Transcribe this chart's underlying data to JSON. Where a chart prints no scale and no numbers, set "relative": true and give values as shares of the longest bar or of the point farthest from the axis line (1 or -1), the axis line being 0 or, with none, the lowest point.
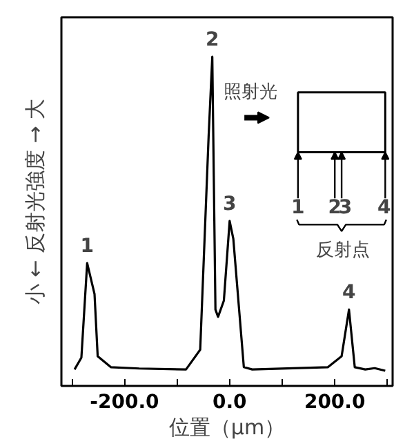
{
  "chart_data": {
    "type": "line",
    "relative": true,
    "xlabel": "位置（μm）",
    "ylabel": "小 ← 反射光強度 → 大",
    "x": [
      -295,
      -282,
      -271,
      -257,
      -251,
      -226,
      -172,
      -83,
      -56,
      -40,
      -33,
      -27,
      -22,
      -11,
      0,
      7,
      27,
      43,
      187,
      213,
      227,
      238,
      258,
      276,
      296
    ],
    "series": [
      {
        "color": "#000000",
        "values": [
          0.05,
          0.086,
          0.373,
          0.279,
          0.09,
          0.057,
          0.053,
          0.05,
          0.11,
          0.757,
          1.0,
          0.232,
          0.21,
          0.259,
          0.501,
          0.447,
          0.057,
          0.05,
          0.057,
          0.09,
          0.232,
          0.057,
          0.05,
          0.054,
          0.046
        ]
      }
    ],
    "xlim": [
      -320,
      310
    ],
    "xticks": [
      {
        "value": -300,
        "label": null
      },
      {
        "value": -200,
        "label": "-200.0"
      },
      {
        "value": -100,
        "label": null
      },
      {
        "value": 0,
        "label": "0.0"
      },
      {
        "value": 100,
        "label": null
      },
      {
        "value": 200,
        "label": "200.0"
      },
      {
        "value": 300,
        "label": null
      }
    ],
    "grid": false,
    "marker": "none",
    "line_style": "solid",
    "annotations": [
      {
        "text": "1",
        "x": -271,
        "y": 0.373
      },
      {
        "text": "2",
        "x": -33,
        "y": 1.0
      },
      {
        "text": "3",
        "x": 0,
        "y": 0.501
      },
      {
        "text": "4",
        "x": 227,
        "y": 0.232
      },
      "照射光",
      "1",
      "2",
      "3",
      "4",
      "反射点"
    ]
  }
}
